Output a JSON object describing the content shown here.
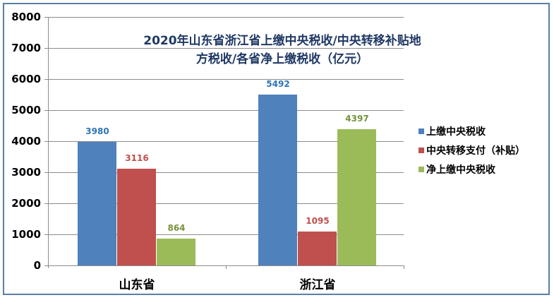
{
  "chart_data": {
    "type": "bar",
    "title": "2020年山东省浙江省上缴中央税收/中央转移补贴地方税收/各省净上缴税收（亿元）",
    "title_lines": [
      "2020年山东省浙江省上缴中央税收/中央转移补贴地",
      "方税收/各省净上缴税收（亿元）"
    ],
    "categories": [
      "山东省",
      "浙江省"
    ],
    "series": [
      {
        "name": "上缴中央税收",
        "color": "#4f81bd",
        "label_color": "#2e75b6",
        "values": [
          3980,
          5492
        ]
      },
      {
        "name": "中央转移支付（补贴）",
        "color": "#c0504d",
        "label_color": "#c0504d",
        "values": [
          3116,
          1095
        ]
      },
      {
        "name": "净上缴中央税收",
        "color": "#9bbb59",
        "label_color": "#76923c",
        "values": [
          864,
          4397
        ]
      }
    ],
    "xlabel": "",
    "ylabel": "",
    "ylim": [
      0,
      8000
    ],
    "yticks": [
      "0",
      "1000",
      "2000",
      "3000",
      "4000",
      "5000",
      "6000",
      "7000",
      "8000"
    ],
    "grid": true,
    "legend_position": "right"
  }
}
